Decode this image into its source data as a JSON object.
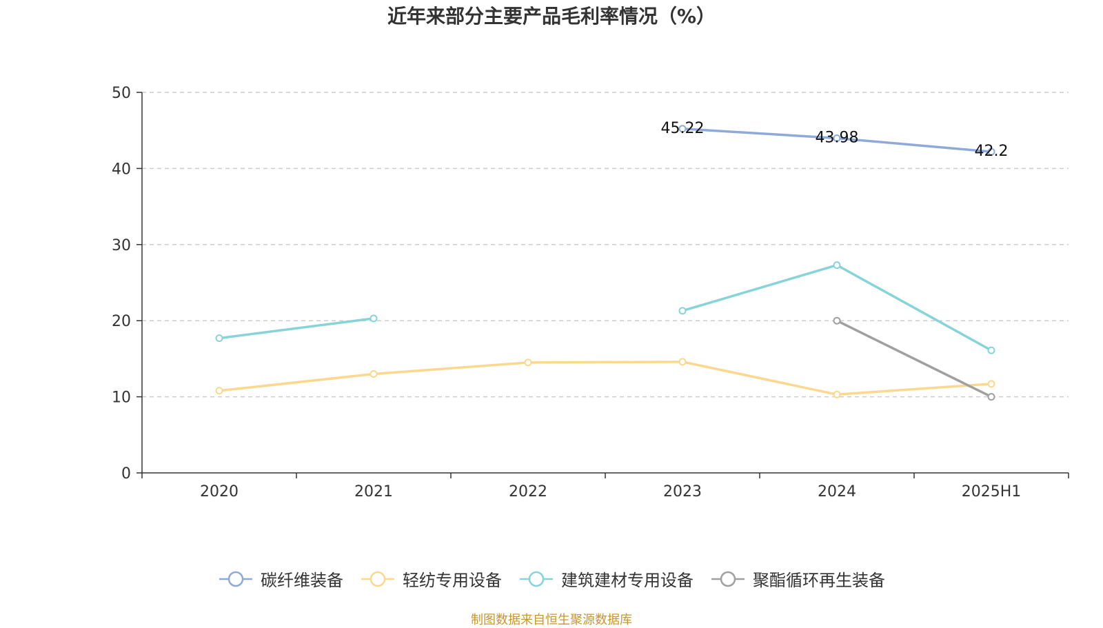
{
  "chart_data": {
    "type": "line",
    "title": "近年来部分主要产品毛利率情况（%）",
    "categories": [
      "2020",
      "2021",
      "2022",
      "2023",
      "2024",
      "2025H1"
    ],
    "ylim": [
      0,
      50
    ],
    "yticks": [
      0,
      10,
      20,
      30,
      40,
      50
    ],
    "grid": true,
    "legend_position": "bottom",
    "series": [
      {
        "name": "碳纤维装备",
        "color": "#8eaadb",
        "values": [
          null,
          null,
          null,
          45.22,
          43.98,
          42.2
        ],
        "show_labels": true
      },
      {
        "name": "轻纺专用设备",
        "color": "#fcd88f",
        "values": [
          10.8,
          13.0,
          14.5,
          14.6,
          10.3,
          11.7
        ],
        "show_labels": false
      },
      {
        "name": "建筑建材专用设备",
        "color": "#86d4d8",
        "values": [
          17.7,
          20.3,
          null,
          21.3,
          27.3,
          16.1
        ],
        "show_labels": false
      },
      {
        "name": "聚酯循环再生装备",
        "color": "#a0a0a0",
        "values": [
          null,
          null,
          null,
          null,
          20.0,
          10.0
        ],
        "show_labels": false
      }
    ]
  },
  "footer": {
    "source": "制图数据来自恒生聚源数据库"
  }
}
